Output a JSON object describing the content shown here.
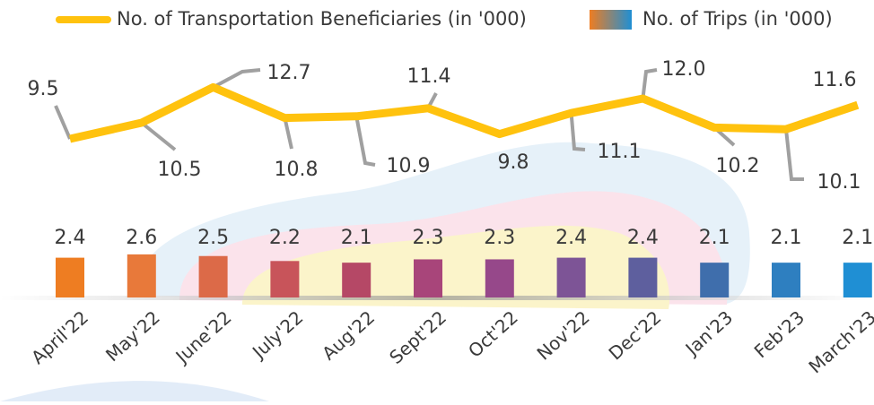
{
  "chart_data": {
    "type": "bar-line",
    "categories": [
      "April'22",
      "May'22",
      "June'22",
      "July'22",
      "Aug'22",
      "Sept'22",
      "Oct'22",
      "Nov'22",
      "Dec'22",
      "Jan'23",
      "Feb'23",
      "March'23"
    ],
    "series": [
      {
        "name": "No. of Transportation Beneficiaries (in '000)",
        "type": "line",
        "color": "#ffc20e",
        "values": [
          9.5,
          10.5,
          12.7,
          10.8,
          10.9,
          11.4,
          9.8,
          11.1,
          12.0,
          10.2,
          10.1,
          11.6
        ],
        "value_labels": [
          "9.5",
          "10.5",
          "12.7",
          "10.8",
          "10.9",
          "11.4",
          "9.8",
          "11.1",
          "12.0",
          "10.2",
          "10.1",
          "11.6"
        ]
      },
      {
        "name": "No. of Trips (in '000)",
        "type": "bar",
        "colors": [
          "#ee7d22",
          "#e8793a",
          "#dc6a48",
          "#c8545a",
          "#b54866",
          "#a8457a",
          "#96488a",
          "#7d5496",
          "#5e5f9e",
          "#3f6eac",
          "#2e7fc0",
          "#1f8fd4"
        ],
        "values": [
          2.4,
          2.6,
          2.5,
          2.2,
          2.1,
          2.3,
          2.3,
          2.4,
          2.4,
          2.1,
          2.1,
          2.1
        ]
      }
    ]
  }
}
